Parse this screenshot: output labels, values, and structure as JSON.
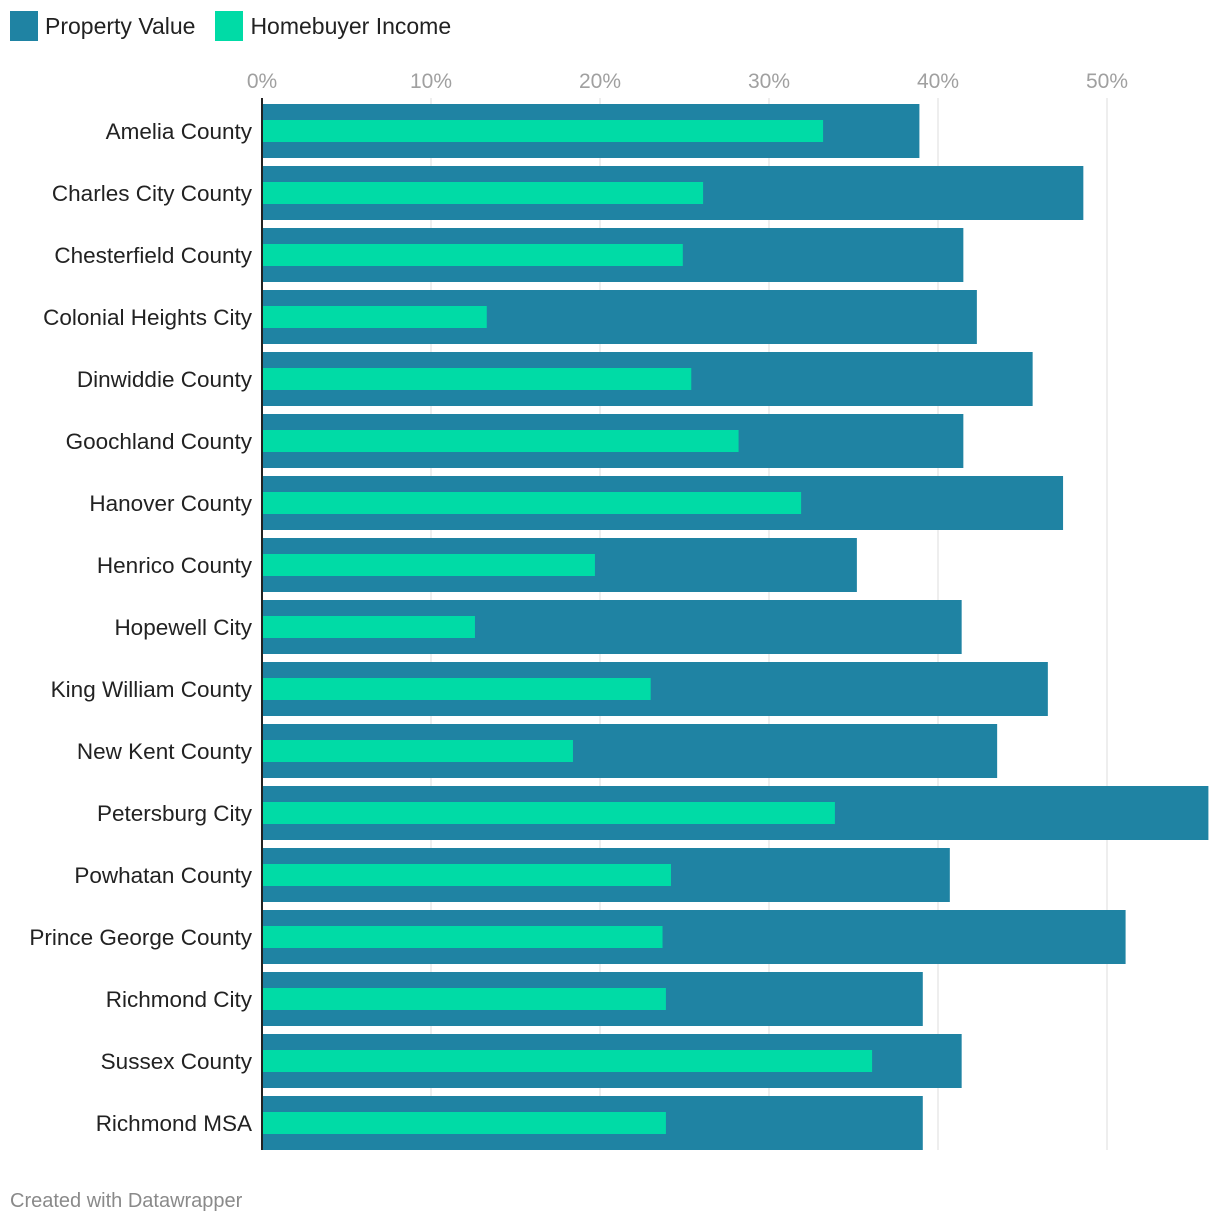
{
  "legend": {
    "items": [
      {
        "label": "Property Value",
        "color": "#1f83a3"
      },
      {
        "label": "Homebuyer Income",
        "color": "#00dba6"
      }
    ]
  },
  "footer": {
    "credit": "Created with Datawrapper"
  },
  "chart_data": {
    "type": "bar",
    "orientation": "horizontal",
    "categories": [
      "Amelia County",
      "Charles City County",
      "Chesterfield County",
      "Colonial Heights City",
      "Dinwiddie County",
      "Goochland County",
      "Hanover County",
      "Henrico County",
      "Hopewell City",
      "King William County",
      "New Kent County",
      "Petersburg City",
      "Powhatan County",
      "Prince George County",
      "Richmond City",
      "Sussex County",
      "Richmond MSA"
    ],
    "series": [
      {
        "name": "Property Value",
        "color": "#1f83a3",
        "values": [
          38.9,
          48.6,
          41.5,
          42.3,
          45.6,
          41.5,
          47.4,
          35.2,
          41.4,
          46.5,
          43.5,
          56.0,
          40.7,
          51.1,
          39.1,
          41.4,
          39.1
        ]
      },
      {
        "name": "Homebuyer Income",
        "color": "#00dba6",
        "values": [
          33.2,
          26.1,
          24.9,
          13.3,
          25.4,
          28.2,
          31.9,
          19.7,
          12.6,
          23.0,
          18.4,
          33.9,
          24.2,
          23.7,
          23.9,
          36.1,
          23.9
        ]
      }
    ],
    "xticks": [
      "0%",
      "10%",
      "20%",
      "30%",
      "40%",
      "50%"
    ],
    "xtick_values": [
      0,
      10,
      20,
      30,
      40,
      50
    ],
    "xlim": [
      0,
      56
    ],
    "xlabel": "",
    "ylabel": "",
    "grid": true,
    "legend_position": "top-left"
  }
}
